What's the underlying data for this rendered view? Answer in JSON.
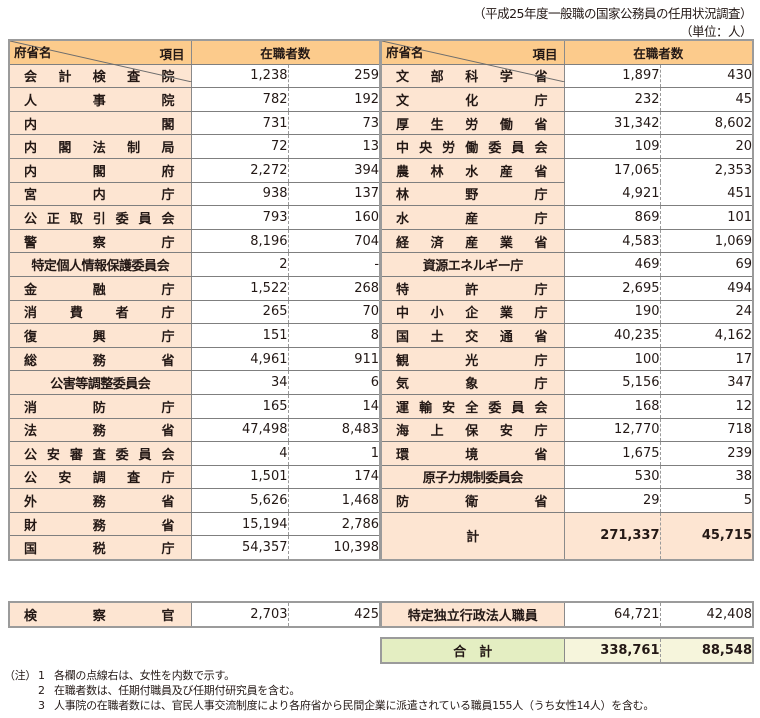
{
  "source_caption": "（平成25年度一般職の国家公務員の任用状況調査）",
  "unit_caption": "（単位：人）",
  "header": {
    "item_label": "項目",
    "ministry_label": "府省名",
    "count_label": "在職者数"
  },
  "left_rows": [
    {
      "name": "会計検査院",
      "total": "1,238",
      "women": "259"
    },
    {
      "name": "人事院",
      "total": "782",
      "women": "192"
    },
    {
      "name": "内閣",
      "total": "731",
      "women": "73"
    },
    {
      "name": "内閣法制局",
      "total": "72",
      "women": "13"
    },
    {
      "name": "内閣府",
      "total": "2,272",
      "women": "394"
    },
    {
      "name": "宮内庁",
      "total": "938",
      "women": "137"
    },
    {
      "name": "公正取引委員会",
      "total": "793",
      "women": "160"
    },
    {
      "name": "警察庁",
      "total": "8,196",
      "women": "704"
    },
    {
      "name": "特定個人情報保護委員会",
      "total": "2",
      "women": "-"
    },
    {
      "name": "金融庁",
      "total": "1,522",
      "women": "268"
    },
    {
      "name": "消費者庁",
      "total": "265",
      "women": "70"
    },
    {
      "name": "復興庁",
      "total": "151",
      "women": "8"
    },
    {
      "name": "総務省",
      "total": "4,961",
      "women": "911"
    },
    {
      "name": "公害等調整委員会",
      "total": "34",
      "women": "6"
    },
    {
      "name": "消防庁",
      "total": "165",
      "women": "14"
    },
    {
      "name": "法務省",
      "total": "47,498",
      "women": "8,483"
    },
    {
      "name": "公安審査委員会",
      "total": "4",
      "women": "1"
    },
    {
      "name": "公安調査庁",
      "total": "1,501",
      "women": "174"
    },
    {
      "name": "外務省",
      "total": "5,626",
      "women": "1,468"
    },
    {
      "name": "財務省",
      "total": "15,194",
      "women": "2,786"
    },
    {
      "name": "国税庁",
      "total": "54,357",
      "women": "10,398"
    }
  ],
  "right_rows": [
    {
      "name": "文部科学省",
      "total": "1,897",
      "women": "430"
    },
    {
      "name": "文化庁",
      "total": "232",
      "women": "45"
    },
    {
      "name": "厚生労働省",
      "total": "31,342",
      "women": "8,602"
    },
    {
      "name": "中央労働委員会",
      "total": "109",
      "women": "20"
    },
    {
      "name": "農林水産省",
      "total": "17,065",
      "women": "2,353"
    },
    {
      "name": "林野庁",
      "total": "4,921",
      "women": "451"
    },
    {
      "name": "水産庁",
      "total": "869",
      "women": "101"
    },
    {
      "name": "経済産業省",
      "total": "4,583",
      "women": "1,069"
    },
    {
      "name": "資源エネルギー庁",
      "total": "469",
      "women": "69"
    },
    {
      "name": "特許庁",
      "total": "2,695",
      "women": "494"
    },
    {
      "name": "中小企業庁",
      "total": "190",
      "women": "24"
    },
    {
      "name": "国土交通省",
      "total": "40,235",
      "women": "4,162"
    },
    {
      "name": "観光庁",
      "total": "100",
      "women": "17"
    },
    {
      "name": "気象庁",
      "total": "5,156",
      "women": "347"
    },
    {
      "name": "運輸安全委員会",
      "total": "168",
      "women": "12"
    },
    {
      "name": "海上保安庁",
      "total": "12,770",
      "women": "718"
    },
    {
      "name": "環境省",
      "total": "1,675",
      "women": "239"
    },
    {
      "name": "原子力規制委員会",
      "total": "530",
      "women": "38"
    },
    {
      "name": "防衛省",
      "total": "29",
      "women": "5"
    }
  ],
  "subtotal": {
    "name": "計",
    "total": "271,337",
    "women": "45,715"
  },
  "prosecutors": {
    "name": "検察官",
    "total": "2,703",
    "women": "425"
  },
  "specified_agency": {
    "name": "特定独立行政法人職員",
    "total": "64,721",
    "women": "42,408"
  },
  "grand_total": {
    "name": "合　計",
    "total": "338,761",
    "women": "88,548"
  },
  "notes": {
    "label": "（注）",
    "items": [
      {
        "num": "1",
        "text": "各欄の点線右は、女性を内数で示す。"
      },
      {
        "num": "2",
        "text": "在職者数は、任期付職員及び任期付研究員を含む。"
      },
      {
        "num": "3",
        "text": "人事院の在職者数には、官民人事交流制度により各府省から民間企業に派遣されている職員155人（うち女性14人）を含む。"
      }
    ]
  },
  "colors": {
    "header_bg": "#fccb8c",
    "name_bg": "#fde5d2",
    "grand_name_bg": "#e4eec2",
    "grand_value_bg": "#f6f5dc",
    "border": "#8a8a8a"
  }
}
